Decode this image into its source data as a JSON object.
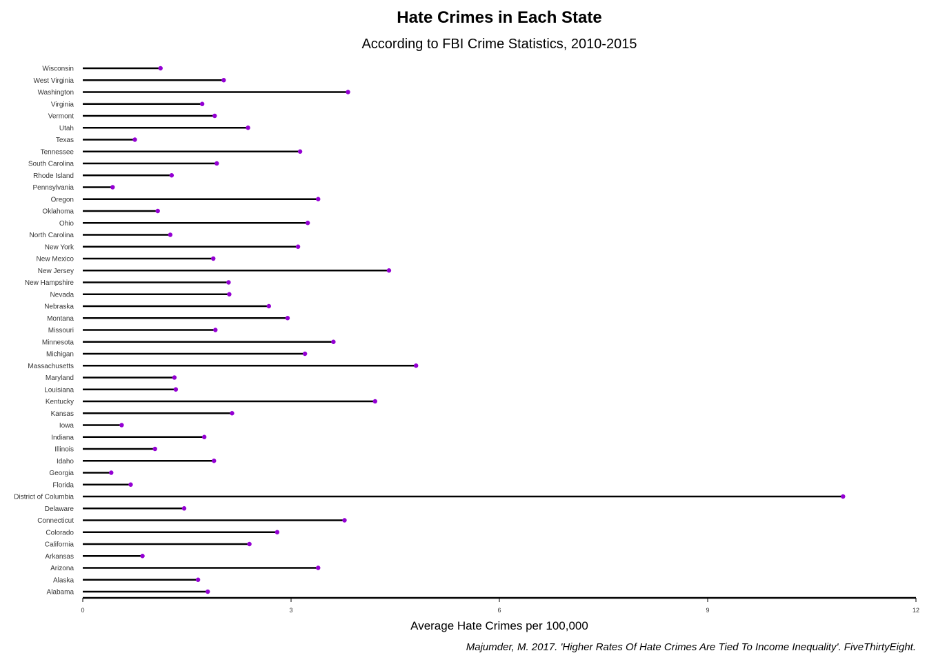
{
  "chart_data": {
    "type": "lollipop",
    "title": "Hate Crimes in Each State",
    "subtitle": "According to FBI Crime Statistics, 2010-2015",
    "xlabel": "Average Hate Crimes per 100,000",
    "ylabel": "",
    "caption": "Majumder, M. 2017. 'Higher Rates Of Hate Crimes Are Tied To Income Inequality'. FiveThirtyEight.",
    "xlim": [
      0,
      12
    ],
    "xticks": [
      0,
      3,
      6,
      9,
      12
    ],
    "grid": false,
    "legend": "none",
    "colors": {
      "stem": "#000000",
      "point": "#9400D3"
    },
    "categories": [
      "Alabama",
      "Alaska",
      "Arizona",
      "Arkansas",
      "California",
      "Colorado",
      "Connecticut",
      "Delaware",
      "District of Columbia",
      "Florida",
      "Georgia",
      "Idaho",
      "Illinois",
      "Indiana",
      "Iowa",
      "Kansas",
      "Kentucky",
      "Louisiana",
      "Maryland",
      "Massachusetts",
      "Michigan",
      "Minnesota",
      "Missouri",
      "Montana",
      "Nebraska",
      "Nevada",
      "New Hampshire",
      "New Jersey",
      "New Mexico",
      "New York",
      "North Carolina",
      "Ohio",
      "Oklahoma",
      "Oregon",
      "Pennsylvania",
      "Rhode Island",
      "South Carolina",
      "Tennessee",
      "Texas",
      "Utah",
      "Vermont",
      "Virginia",
      "Washington",
      "West Virginia",
      "Wisconsin"
    ],
    "values": [
      1.8,
      1.66,
      3.39,
      0.86,
      2.4,
      2.8,
      3.77,
      1.46,
      10.95,
      0.69,
      0.41,
      1.89,
      1.04,
      1.75,
      0.56,
      2.15,
      4.21,
      1.34,
      1.32,
      4.8,
      3.2,
      3.61,
      1.91,
      2.95,
      2.68,
      2.11,
      2.1,
      4.41,
      1.88,
      3.1,
      1.26,
      3.24,
      1.08,
      3.39,
      0.43,
      1.28,
      1.93,
      3.13,
      0.75,
      2.38,
      1.9,
      1.72,
      3.82,
      2.03,
      1.12
    ]
  }
}
